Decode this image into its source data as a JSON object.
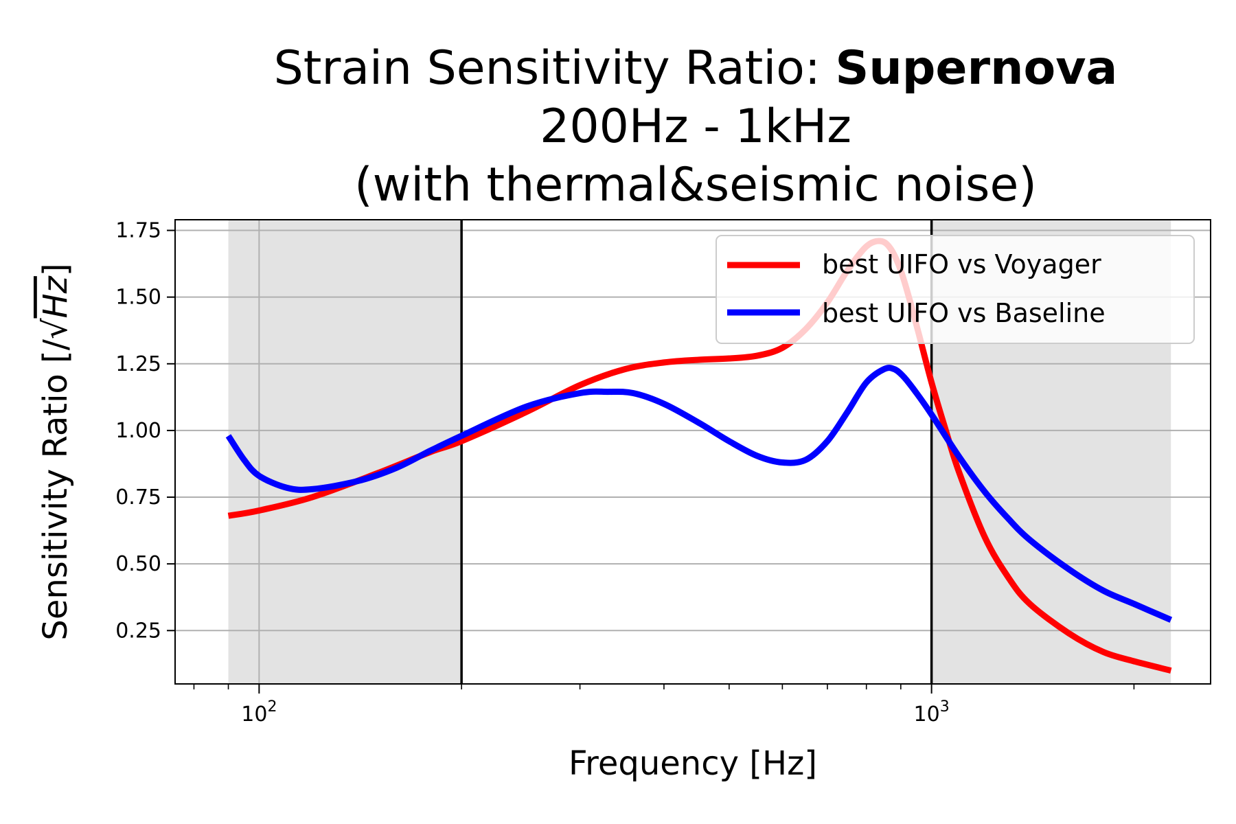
{
  "chart_data": {
    "type": "line",
    "title": {
      "prefix": "Strain Sensitivity Ratio: ",
      "bold": "Supernova",
      "line2": "200Hz - 1kHz",
      "line3": "(with thermal&seismic noise)"
    },
    "xlabel": "Frequency [Hz]",
    "ylabel": {
      "prefix": "Sensitivity Ratio [/",
      "radical": "√",
      "radicand": "Hz",
      "suffix": "]"
    },
    "x_scale": "log",
    "xlim": [
      75,
      2600
    ],
    "ylim": [
      0.05,
      1.79
    ],
    "x_major_ticks": [
      {
        "value": 100,
        "base": "10",
        "exp": "2"
      },
      {
        "value": 1000,
        "base": "10",
        "exp": "3"
      }
    ],
    "y_ticks": [
      {
        "value": 0.25,
        "label": "0.25"
      },
      {
        "value": 0.5,
        "label": "0.50"
      },
      {
        "value": 0.75,
        "label": "0.75"
      },
      {
        "value": 1.0,
        "label": "1.00"
      },
      {
        "value": 1.25,
        "label": "1.25"
      },
      {
        "value": 1.5,
        "label": "1.50"
      },
      {
        "value": 1.75,
        "label": "1.75"
      }
    ],
    "grid": true,
    "shaded_regions": [
      [
        90,
        200
      ],
      [
        1000,
        2270
      ]
    ],
    "band_edge_lines": [
      200,
      1000
    ],
    "legend_position": "upper-right",
    "series": [
      {
        "name": "best UIFO vs Voyager",
        "color": "#ff0000",
        "points": [
          [
            90,
            0.68
          ],
          [
            100,
            0.7
          ],
          [
            120,
            0.75
          ],
          [
            150,
            0.84
          ],
          [
            180,
            0.92
          ],
          [
            200,
            0.96
          ],
          [
            250,
            1.07
          ],
          [
            300,
            1.17
          ],
          [
            350,
            1.23
          ],
          [
            400,
            1.255
          ],
          [
            450,
            1.265
          ],
          [
            500,
            1.27
          ],
          [
            550,
            1.28
          ],
          [
            600,
            1.31
          ],
          [
            650,
            1.38
          ],
          [
            700,
            1.48
          ],
          [
            750,
            1.6
          ],
          [
            800,
            1.69
          ],
          [
            840,
            1.71
          ],
          [
            870,
            1.68
          ],
          [
            900,
            1.6
          ],
          [
            930,
            1.48
          ],
          [
            960,
            1.35
          ],
          [
            1000,
            1.18
          ],
          [
            1050,
            1.0
          ],
          [
            1100,
            0.84
          ],
          [
            1200,
            0.6
          ],
          [
            1300,
            0.45
          ],
          [
            1400,
            0.35
          ],
          [
            1600,
            0.24
          ],
          [
            1800,
            0.17
          ],
          [
            2000,
            0.135
          ],
          [
            2270,
            0.1
          ]
        ]
      },
      {
        "name": "best UIFO vs Baseline",
        "color": "#0000ff",
        "points": [
          [
            90,
            0.98
          ],
          [
            95,
            0.89
          ],
          [
            100,
            0.83
          ],
          [
            110,
            0.785
          ],
          [
            120,
            0.78
          ],
          [
            140,
            0.81
          ],
          [
            160,
            0.86
          ],
          [
            180,
            0.925
          ],
          [
            200,
            0.98
          ],
          [
            250,
            1.09
          ],
          [
            300,
            1.14
          ],
          [
            330,
            1.145
          ],
          [
            360,
            1.14
          ],
          [
            400,
            1.1
          ],
          [
            450,
            1.03
          ],
          [
            500,
            0.96
          ],
          [
            550,
            0.905
          ],
          [
            600,
            0.88
          ],
          [
            650,
            0.89
          ],
          [
            700,
            0.96
          ],
          [
            750,
            1.07
          ],
          [
            800,
            1.18
          ],
          [
            850,
            1.23
          ],
          [
            880,
            1.23
          ],
          [
            910,
            1.2
          ],
          [
            950,
            1.14
          ],
          [
            1000,
            1.06
          ],
          [
            1100,
            0.9
          ],
          [
            1200,
            0.77
          ],
          [
            1300,
            0.67
          ],
          [
            1400,
            0.59
          ],
          [
            1600,
            0.48
          ],
          [
            1800,
            0.4
          ],
          [
            2000,
            0.35
          ],
          [
            2270,
            0.29
          ]
        ]
      }
    ]
  }
}
